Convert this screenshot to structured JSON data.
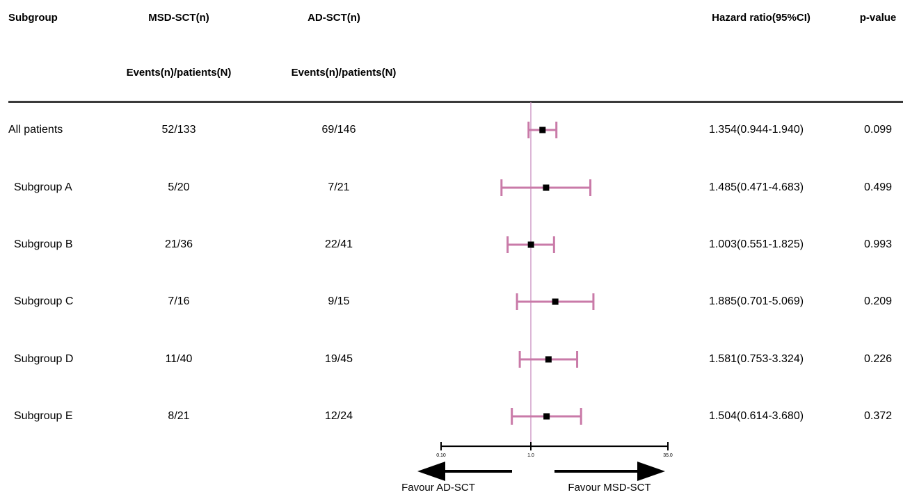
{
  "header": {
    "subgroup": "Subgroup",
    "msd": "MSD-SCT(n)",
    "ad": "AD-SCT(n)",
    "hr": "Hazard ratio(95%CI)",
    "p": "p-value",
    "msd_sub": "Events(n)/patients(N)",
    "ad_sub": "Events(n)/patients(N)"
  },
  "rows": [
    {
      "label": "All patients",
      "msd": "52/133",
      "ad": "69/146",
      "hr_text": "1.354(0.944-1.940)",
      "p": "0.099"
    },
    {
      "label": "Subgroup A",
      "msd": "5/20",
      "ad": "7/21",
      "hr_text": "1.485(0.471-4.683)",
      "p": "0.499"
    },
    {
      "label": "Subgroup B",
      "msd": "21/36",
      "ad": "22/41",
      "hr_text": "1.003(0.551-1.825)",
      "p": "0.993"
    },
    {
      "label": "Subgroup C",
      "msd": "7/16",
      "ad": "9/15",
      "hr_text": "1.885(0.701-5.069)",
      "p": "0.209"
    },
    {
      "label": "Subgroup D",
      "msd": "11/40",
      "ad": "19/45",
      "hr_text": "1.581(0.753-3.324)",
      "p": "0.226"
    },
    {
      "label": "Subgroup E",
      "msd": "8/21",
      "ad": "12/24",
      "hr_text": "1.504(0.614-3.680)",
      "p": "0.372"
    }
  ],
  "axis": {
    "tick_labels": [
      "0.10",
      "1.0",
      "35.0"
    ],
    "left_label": "Favour AD-SCT",
    "right_label": "Favour MSD-SCT"
  },
  "colors": {
    "ci": "#c97aa8",
    "reference": "#c98fbf",
    "marker": "#000000"
  },
  "chart_data": {
    "type": "forest",
    "title": "",
    "xlabel": "",
    "x_scale": "log",
    "xlim": [
      0.1,
      35.0
    ],
    "reference_line": 1.0,
    "ticks": [
      0.1,
      1.0,
      35.0
    ],
    "categories": [
      "All patients",
      "Subgroup A",
      "Subgroup B",
      "Subgroup C",
      "Subgroup D",
      "Subgroup E"
    ],
    "hr": [
      1.354,
      1.485,
      1.003,
      1.885,
      1.581,
      1.504
    ],
    "lower": [
      0.944,
      0.471,
      0.551,
      0.701,
      0.753,
      0.614
    ],
    "upper": [
      1.94,
      4.683,
      1.825,
      5.069,
      3.324,
      3.68
    ],
    "p_values": [
      0.099,
      0.499,
      0.993,
      0.209,
      0.226,
      0.372
    ]
  }
}
